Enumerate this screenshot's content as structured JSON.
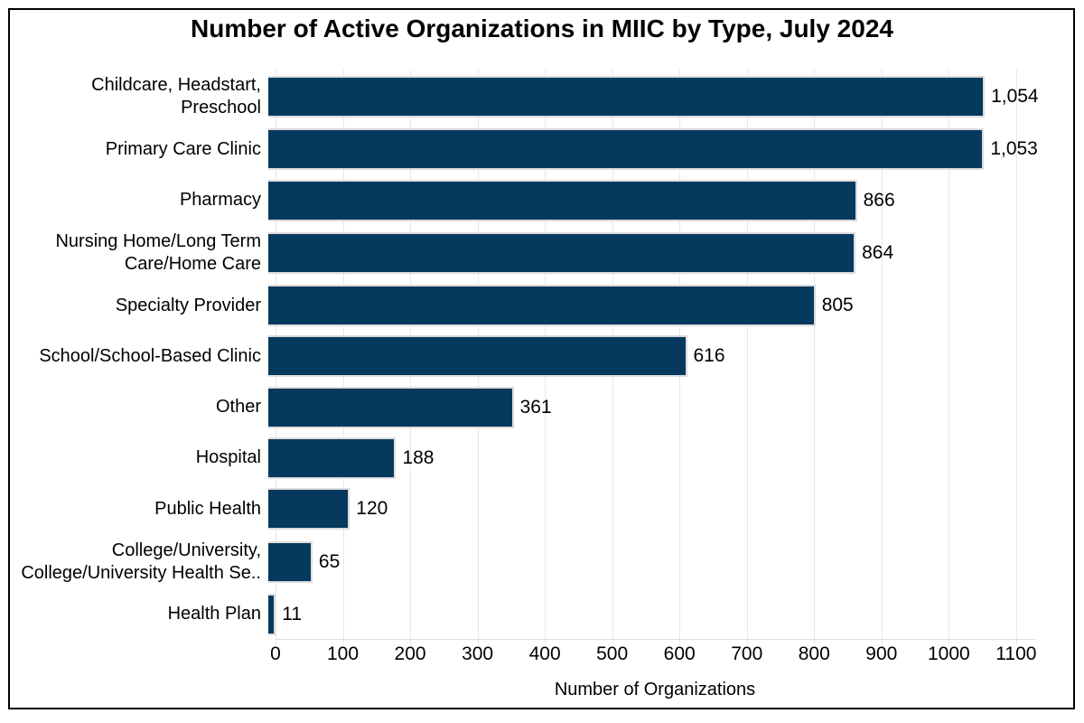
{
  "chart_data": {
    "type": "bar",
    "orientation": "horizontal",
    "title": "Number of Active Organizations in MIIC by Type, July 2024",
    "xlabel": "Number of Organizations",
    "categories": [
      "Childcare, Headstart,\nPreschool",
      "Primary Care Clinic",
      "Pharmacy",
      "Nursing Home/Long Term\nCare/Home Care",
      "Specialty Provider",
      "School/School-Based Clinic",
      "Other",
      "Hospital",
      "Public Health",
      "College/University,\nCollege/University Health Se..",
      "Health Plan"
    ],
    "values": [
      1054,
      1053,
      866,
      864,
      805,
      616,
      361,
      188,
      120,
      65,
      11
    ],
    "value_labels": [
      "1,054",
      "1,053",
      "866",
      "864",
      "805",
      "616",
      "361",
      "188",
      "120",
      "65",
      "11"
    ],
    "x_ticks": [
      0,
      100,
      200,
      300,
      400,
      500,
      600,
      700,
      800,
      900,
      1000,
      1100
    ],
    "xlim": [
      0,
      1127
    ],
    "grid": "vertical-major",
    "legend": "none",
    "colors": {
      "bar_fill": "#05395e",
      "bar_outline": "#dcdcdc",
      "gridline": "#e8e8e8",
      "text": "#000000",
      "frame_border": "#000000",
      "background": "#ffffff"
    }
  }
}
